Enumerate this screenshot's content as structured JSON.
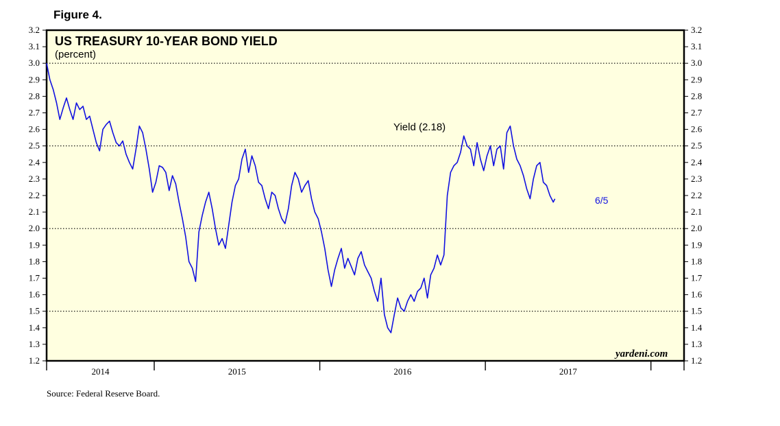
{
  "figure_label": "Figure 4.",
  "source": "Source: Federal Reserve Board.",
  "brand": "yardeni.com",
  "colors": {
    "panel": "#ffffe0",
    "line": "#1010e0",
    "frame": "#000000"
  },
  "chart_data": {
    "type": "line",
    "title": "US TREASURY 10-YEAR BOND YIELD",
    "subtitle": "(percent)",
    "annotation": "Yield (2.18)",
    "end_label": "6/5",
    "ylim": [
      1.2,
      3.2
    ],
    "y_ticks": [
      "1.2",
      "1.3",
      "1.4",
      "1.5",
      "1.6",
      "1.7",
      "1.8",
      "1.9",
      "2.0",
      "2.1",
      "2.2",
      "2.3",
      "2.4",
      "2.5",
      "2.6",
      "2.7",
      "2.8",
      "2.9",
      "3.0",
      "3.1",
      "3.2"
    ],
    "dotted_gridlines": [
      1.5,
      2.0,
      2.5,
      3.0
    ],
    "x_range": [
      2013.85,
      2017.7
    ],
    "x_tick_labels": [
      "2014",
      "2015",
      "2016",
      "2017"
    ],
    "series": [
      {
        "values": [
          [
            2013.85,
            3.0
          ],
          [
            2013.87,
            2.9
          ],
          [
            2013.89,
            2.84
          ],
          [
            2013.91,
            2.76
          ],
          [
            2013.93,
            2.66
          ],
          [
            2013.95,
            2.73
          ],
          [
            2013.97,
            2.79
          ],
          [
            2013.99,
            2.72
          ],
          [
            2014.01,
            2.66
          ],
          [
            2014.03,
            2.76
          ],
          [
            2014.05,
            2.72
          ],
          [
            2014.07,
            2.74
          ],
          [
            2014.09,
            2.66
          ],
          [
            2014.11,
            2.68
          ],
          [
            2014.13,
            2.6
          ],
          [
            2014.15,
            2.52
          ],
          [
            2014.17,
            2.47
          ],
          [
            2014.19,
            2.6
          ],
          [
            2014.21,
            2.63
          ],
          [
            2014.23,
            2.65
          ],
          [
            2014.25,
            2.58
          ],
          [
            2014.27,
            2.52
          ],
          [
            2014.29,
            2.5
          ],
          [
            2014.31,
            2.53
          ],
          [
            2014.33,
            2.45
          ],
          [
            2014.35,
            2.4
          ],
          [
            2014.37,
            2.36
          ],
          [
            2014.39,
            2.48
          ],
          [
            2014.41,
            2.62
          ],
          [
            2014.43,
            2.58
          ],
          [
            2014.45,
            2.48
          ],
          [
            2014.47,
            2.36
          ],
          [
            2014.49,
            2.22
          ],
          [
            2014.51,
            2.28
          ],
          [
            2014.53,
            2.38
          ],
          [
            2014.55,
            2.37
          ],
          [
            2014.57,
            2.34
          ],
          [
            2014.59,
            2.23
          ],
          [
            2014.61,
            2.32
          ],
          [
            2014.63,
            2.27
          ],
          [
            2014.65,
            2.16
          ],
          [
            2014.67,
            2.06
          ],
          [
            2014.69,
            1.95
          ],
          [
            2014.71,
            1.8
          ],
          [
            2014.73,
            1.76
          ],
          [
            2014.75,
            1.68
          ],
          [
            2014.77,
            1.98
          ],
          [
            2014.79,
            2.08
          ],
          [
            2014.81,
            2.16
          ],
          [
            2014.83,
            2.22
          ],
          [
            2014.85,
            2.12
          ],
          [
            2014.87,
            2.0
          ],
          [
            2014.89,
            1.9
          ],
          [
            2014.91,
            1.94
          ],
          [
            2014.93,
            1.88
          ],
          [
            2014.95,
            2.02
          ],
          [
            2014.97,
            2.16
          ],
          [
            2014.99,
            2.26
          ],
          [
            2015.01,
            2.3
          ],
          [
            2015.03,
            2.42
          ],
          [
            2015.05,
            2.48
          ],
          [
            2015.07,
            2.34
          ],
          [
            2015.09,
            2.44
          ],
          [
            2015.11,
            2.38
          ],
          [
            2015.13,
            2.28
          ],
          [
            2015.15,
            2.26
          ],
          [
            2015.17,
            2.18
          ],
          [
            2015.19,
            2.12
          ],
          [
            2015.21,
            2.22
          ],
          [
            2015.23,
            2.2
          ],
          [
            2015.25,
            2.12
          ],
          [
            2015.27,
            2.06
          ],
          [
            2015.29,
            2.03
          ],
          [
            2015.31,
            2.12
          ],
          [
            2015.33,
            2.26
          ],
          [
            2015.35,
            2.34
          ],
          [
            2015.37,
            2.3
          ],
          [
            2015.39,
            2.22
          ],
          [
            2015.41,
            2.26
          ],
          [
            2015.43,
            2.29
          ],
          [
            2015.45,
            2.18
          ],
          [
            2015.47,
            2.1
          ],
          [
            2015.49,
            2.06
          ],
          [
            2015.51,
            1.98
          ],
          [
            2015.53,
            1.88
          ],
          [
            2015.55,
            1.75
          ],
          [
            2015.57,
            1.65
          ],
          [
            2015.59,
            1.75
          ],
          [
            2015.61,
            1.82
          ],
          [
            2015.63,
            1.88
          ],
          [
            2015.65,
            1.76
          ],
          [
            2015.67,
            1.82
          ],
          [
            2015.69,
            1.77
          ],
          [
            2015.71,
            1.72
          ],
          [
            2015.73,
            1.82
          ],
          [
            2015.75,
            1.86
          ],
          [
            2015.77,
            1.78
          ],
          [
            2015.79,
            1.74
          ],
          [
            2015.81,
            1.7
          ],
          [
            2015.83,
            1.62
          ],
          [
            2015.85,
            1.56
          ],
          [
            2015.87,
            1.7
          ],
          [
            2015.89,
            1.48
          ],
          [
            2015.91,
            1.4
          ],
          [
            2015.93,
            1.37
          ],
          [
            2015.95,
            1.48
          ],
          [
            2015.97,
            1.58
          ],
          [
            2015.99,
            1.52
          ],
          [
            2016.01,
            1.5
          ],
          [
            2016.03,
            1.56
          ],
          [
            2016.05,
            1.6
          ],
          [
            2016.07,
            1.56
          ],
          [
            2016.09,
            1.62
          ],
          [
            2016.11,
            1.64
          ],
          [
            2016.13,
            1.7
          ],
          [
            2016.15,
            1.58
          ],
          [
            2016.17,
            1.72
          ],
          [
            2016.19,
            1.76
          ],
          [
            2016.21,
            1.84
          ],
          [
            2016.23,
            1.78
          ],
          [
            2016.25,
            1.84
          ],
          [
            2016.27,
            2.2
          ],
          [
            2016.29,
            2.34
          ],
          [
            2016.31,
            2.38
          ],
          [
            2016.33,
            2.4
          ],
          [
            2016.35,
            2.46
          ],
          [
            2016.37,
            2.56
          ],
          [
            2016.39,
            2.5
          ],
          [
            2016.41,
            2.48
          ],
          [
            2016.43,
            2.38
          ],
          [
            2016.45,
            2.52
          ],
          [
            2016.47,
            2.42
          ],
          [
            2016.49,
            2.35
          ],
          [
            2016.51,
            2.44
          ],
          [
            2016.53,
            2.5
          ],
          [
            2016.55,
            2.38
          ],
          [
            2016.57,
            2.48
          ],
          [
            2016.59,
            2.5
          ],
          [
            2016.61,
            2.36
          ],
          [
            2016.63,
            2.58
          ],
          [
            2016.65,
            2.62
          ],
          [
            2016.67,
            2.5
          ],
          [
            2016.69,
            2.42
          ],
          [
            2016.71,
            2.38
          ],
          [
            2016.73,
            2.32
          ],
          [
            2016.75,
            2.24
          ],
          [
            2016.77,
            2.18
          ],
          [
            2016.79,
            2.3
          ],
          [
            2016.81,
            2.38
          ],
          [
            2016.83,
            2.4
          ],
          [
            2016.85,
            2.28
          ],
          [
            2016.87,
            2.26
          ],
          [
            2016.89,
            2.2
          ],
          [
            2016.91,
            2.16
          ],
          [
            2016.92,
            2.18
          ]
        ]
      }
    ],
    "grid": "dotted at 0.5 intervals"
  }
}
